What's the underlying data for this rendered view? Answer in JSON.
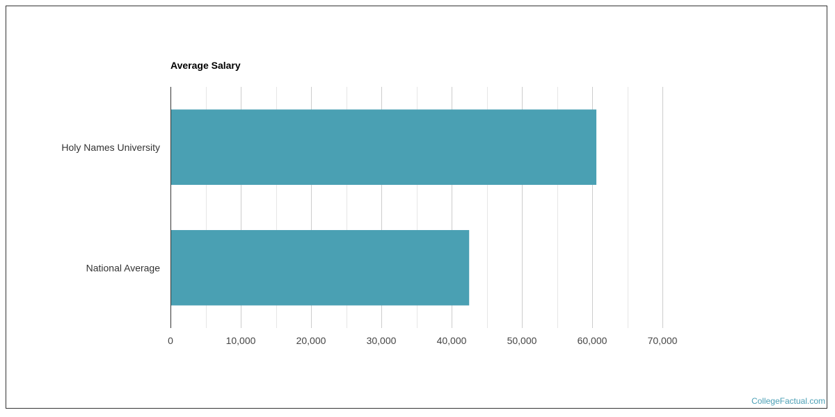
{
  "chart_data": {
    "type": "bar",
    "orientation": "horizontal",
    "title": "Average Salary",
    "categories": [
      "Holy Names University",
      "National Average"
    ],
    "values": [
      60600,
      42500
    ],
    "xlim": [
      0,
      70000
    ],
    "x_ticks": [
      0,
      10000,
      20000,
      30000,
      40000,
      50000,
      60000,
      70000
    ],
    "x_tick_labels": [
      "0",
      "10,000",
      "20,000",
      "30,000",
      "40,000",
      "50,000",
      "60,000",
      "70,000"
    ],
    "xlabel": "",
    "ylabel": "",
    "grid": true,
    "bar_color": "#4aa0b3",
    "gridline_color_major": "#cccccc",
    "gridline_color_minor": "#e6e6e6"
  },
  "watermark": "CollegeFactual.com"
}
